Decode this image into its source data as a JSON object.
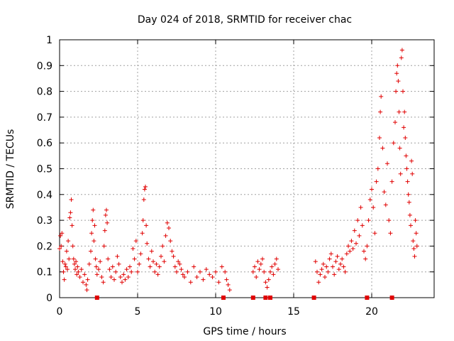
{
  "chart_data": {
    "type": "scatter",
    "title": "Day 024 of 2018, SRMTID for receiver chac",
    "xlabel": "GPS time / hours",
    "ylabel": "SRMTID / TECUs",
    "xlim": [
      0,
      24
    ],
    "ylim": [
      0,
      1
    ],
    "x_ticks": [
      "0",
      "5",
      "10",
      "15",
      "20"
    ],
    "x_tick_values": [
      0,
      5,
      10,
      15,
      20
    ],
    "y_ticks": [
      "0",
      "0.1",
      "0.2",
      "0.3",
      "0.4",
      "0.5",
      "0.6",
      "0.7",
      "0.8",
      "0.9",
      "1"
    ],
    "y_tick_values": [
      0,
      0.1,
      0.2,
      0.3,
      0.4,
      0.5,
      0.6,
      0.7,
      0.8,
      0.9,
      1
    ],
    "grid": true,
    "marker": "+",
    "color": "#e00000",
    "axis_markers_x": [
      2.4,
      10.5,
      12.4,
      13.2,
      13.5,
      16.3,
      19.7,
      21.3
    ],
    "series": [
      {
        "name": "SRMTID",
        "points": [
          [
            0.0,
            0.19
          ],
          [
            0.05,
            0.24
          ],
          [
            0.1,
            0.2
          ],
          [
            0.15,
            0.25
          ],
          [
            0.2,
            0.14
          ],
          [
            0.25,
            0.1
          ],
          [
            0.3,
            0.07
          ],
          [
            0.35,
            0.13
          ],
          [
            0.4,
            0.12
          ],
          [
            0.45,
            0.18
          ],
          [
            0.5,
            0.11
          ],
          [
            0.55,
            0.22
          ],
          [
            0.6,
            0.15
          ],
          [
            0.65,
            0.31
          ],
          [
            0.7,
            0.33
          ],
          [
            0.75,
            0.38
          ],
          [
            0.8,
            0.28
          ],
          [
            0.85,
            0.2
          ],
          [
            0.9,
            0.15
          ],
          [
            0.95,
            0.13
          ],
          [
            1.0,
            0.11
          ],
          [
            1.05,
            0.14
          ],
          [
            1.1,
            0.09
          ],
          [
            1.15,
            0.12
          ],
          [
            1.2,
            0.1
          ],
          [
            1.3,
            0.08
          ],
          [
            1.4,
            0.11
          ],
          [
            1.5,
            0.06
          ],
          [
            1.6,
            0.09
          ],
          [
            1.7,
            0.05
          ],
          [
            1.75,
            0.03
          ],
          [
            1.8,
            0.07
          ],
          [
            1.9,
            0.13
          ],
          [
            2.0,
            0.18
          ],
          [
            2.05,
            0.25
          ],
          [
            2.1,
            0.3
          ],
          [
            2.15,
            0.34
          ],
          [
            2.2,
            0.22
          ],
          [
            2.25,
            0.28
          ],
          [
            2.3,
            0.15
          ],
          [
            2.35,
            0.12
          ],
          [
            2.4,
            0.09
          ],
          [
            2.5,
            0.11
          ],
          [
            2.6,
            0.14
          ],
          [
            2.7,
            0.08
          ],
          [
            2.8,
            0.06
          ],
          [
            2.85,
            0.2
          ],
          [
            2.9,
            0.26
          ],
          [
            2.95,
            0.32
          ],
          [
            3.0,
            0.34
          ],
          [
            3.05,
            0.29
          ],
          [
            3.1,
            0.15
          ],
          [
            3.2,
            0.11
          ],
          [
            3.3,
            0.08
          ],
          [
            3.4,
            0.12
          ],
          [
            3.5,
            0.07
          ],
          [
            3.6,
            0.1
          ],
          [
            3.7,
            0.16
          ],
          [
            3.8,
            0.13
          ],
          [
            3.9,
            0.08
          ],
          [
            4.0,
            0.06
          ],
          [
            4.1,
            0.09
          ],
          [
            4.2,
            0.07
          ],
          [
            4.3,
            0.11
          ],
          [
            4.4,
            0.08
          ],
          [
            4.5,
            0.12
          ],
          [
            4.6,
            0.1
          ],
          [
            4.7,
            0.19
          ],
          [
            4.8,
            0.15
          ],
          [
            4.9,
            0.22
          ],
          [
            5.0,
            0.1
          ],
          [
            5.1,
            0.13
          ],
          [
            5.2,
            0.17
          ],
          [
            5.3,
            0.25
          ],
          [
            5.35,
            0.3
          ],
          [
            5.4,
            0.38
          ],
          [
            5.45,
            0.42
          ],
          [
            5.5,
            0.43
          ],
          [
            5.55,
            0.28
          ],
          [
            5.6,
            0.21
          ],
          [
            5.7,
            0.15
          ],
          [
            5.8,
            0.12
          ],
          [
            5.9,
            0.18
          ],
          [
            6.0,
            0.14
          ],
          [
            6.1,
            0.1
          ],
          [
            6.2,
            0.13
          ],
          [
            6.3,
            0.09
          ],
          [
            6.4,
            0.12
          ],
          [
            6.5,
            0.16
          ],
          [
            6.6,
            0.2
          ],
          [
            6.7,
            0.14
          ],
          [
            6.8,
            0.24
          ],
          [
            6.9,
            0.29
          ],
          [
            7.0,
            0.27
          ],
          [
            7.1,
            0.22
          ],
          [
            7.2,
            0.18
          ],
          [
            7.3,
            0.16
          ],
          [
            7.4,
            0.12
          ],
          [
            7.5,
            0.1
          ],
          [
            7.6,
            0.14
          ],
          [
            7.7,
            0.13
          ],
          [
            7.8,
            0.11
          ],
          [
            7.9,
            0.09
          ],
          [
            8.0,
            0.08
          ],
          [
            8.2,
            0.1
          ],
          [
            8.4,
            0.06
          ],
          [
            8.6,
            0.12
          ],
          [
            8.8,
            0.08
          ],
          [
            9.0,
            0.1
          ],
          [
            9.2,
            0.07
          ],
          [
            9.4,
            0.11
          ],
          [
            9.6,
            0.09
          ],
          [
            9.8,
            0.08
          ],
          [
            10.0,
            0.1
          ],
          [
            10.2,
            0.06
          ],
          [
            10.4,
            0.12
          ],
          [
            10.6,
            0.1
          ],
          [
            10.7,
            0.07
          ],
          [
            10.8,
            0.05
          ],
          [
            10.9,
            0.03
          ],
          [
            12.4,
            0.1
          ],
          [
            12.5,
            0.12
          ],
          [
            12.6,
            0.08
          ],
          [
            12.7,
            0.14
          ],
          [
            12.8,
            0.11
          ],
          [
            12.9,
            0.13
          ],
          [
            13.0,
            0.15
          ],
          [
            13.1,
            0.1
          ],
          [
            13.2,
            0.06
          ],
          [
            13.3,
            0.04
          ],
          [
            13.4,
            0.07
          ],
          [
            13.5,
            0.1
          ],
          [
            13.6,
            0.12
          ],
          [
            13.7,
            0.09
          ],
          [
            13.8,
            0.13
          ],
          [
            13.9,
            0.15
          ],
          [
            14.0,
            0.11
          ],
          [
            16.4,
            0.14
          ],
          [
            16.5,
            0.1
          ],
          [
            16.6,
            0.06
          ],
          [
            16.7,
            0.09
          ],
          [
            16.8,
            0.11
          ],
          [
            16.9,
            0.13
          ],
          [
            17.0,
            0.08
          ],
          [
            17.1,
            0.12
          ],
          [
            17.2,
            0.1
          ],
          [
            17.3,
            0.15
          ],
          [
            17.4,
            0.17
          ],
          [
            17.5,
            0.12
          ],
          [
            17.6,
            0.09
          ],
          [
            17.7,
            0.14
          ],
          [
            17.8,
            0.16
          ],
          [
            17.9,
            0.11
          ],
          [
            18.0,
            0.13
          ],
          [
            18.1,
            0.15
          ],
          [
            18.2,
            0.12
          ],
          [
            18.3,
            0.1
          ],
          [
            18.4,
            0.17
          ],
          [
            18.5,
            0.2
          ],
          [
            18.6,
            0.18
          ],
          [
            18.7,
            0.22
          ],
          [
            18.8,
            0.19
          ],
          [
            18.9,
            0.26
          ],
          [
            19.0,
            0.21
          ],
          [
            19.1,
            0.3
          ],
          [
            19.2,
            0.24
          ],
          [
            19.3,
            0.35
          ],
          [
            19.4,
            0.28
          ],
          [
            19.5,
            0.18
          ],
          [
            19.6,
            0.15
          ],
          [
            19.7,
            0.2
          ],
          [
            19.8,
            0.3
          ],
          [
            19.9,
            0.38
          ],
          [
            20.0,
            0.42
          ],
          [
            20.1,
            0.35
          ],
          [
            20.2,
            0.25
          ],
          [
            20.3,
            0.45
          ],
          [
            20.4,
            0.5
          ],
          [
            20.5,
            0.62
          ],
          [
            20.55,
            0.72
          ],
          [
            20.6,
            0.78
          ],
          [
            20.7,
            0.58
          ],
          [
            20.8,
            0.41
          ],
          [
            20.9,
            0.36
          ],
          [
            21.0,
            0.52
          ],
          [
            21.1,
            0.3
          ],
          [
            21.2,
            0.25
          ],
          [
            21.3,
            0.45
          ],
          [
            21.4,
            0.6
          ],
          [
            21.5,
            0.68
          ],
          [
            21.55,
            0.8
          ],
          [
            21.6,
            0.87
          ],
          [
            21.65,
            0.9
          ],
          [
            21.7,
            0.84
          ],
          [
            21.75,
            0.72
          ],
          [
            21.8,
            0.58
          ],
          [
            21.85,
            0.48
          ],
          [
            21.9,
            0.93
          ],
          [
            21.95,
            0.96
          ],
          [
            22.0,
            0.8
          ],
          [
            22.05,
            0.66
          ],
          [
            22.1,
            0.72
          ],
          [
            22.15,
            0.62
          ],
          [
            22.2,
            0.55
          ],
          [
            22.25,
            0.5
          ],
          [
            22.3,
            0.45
          ],
          [
            22.35,
            0.4
          ],
          [
            22.4,
            0.37
          ],
          [
            22.45,
            0.32
          ],
          [
            22.5,
            0.28
          ],
          [
            22.55,
            0.53
          ],
          [
            22.6,
            0.48
          ],
          [
            22.65,
            0.22
          ],
          [
            22.7,
            0.19
          ],
          [
            22.75,
            0.16
          ],
          [
            22.8,
            0.3
          ],
          [
            22.85,
            0.25
          ],
          [
            22.9,
            0.2
          ]
        ]
      }
    ]
  }
}
